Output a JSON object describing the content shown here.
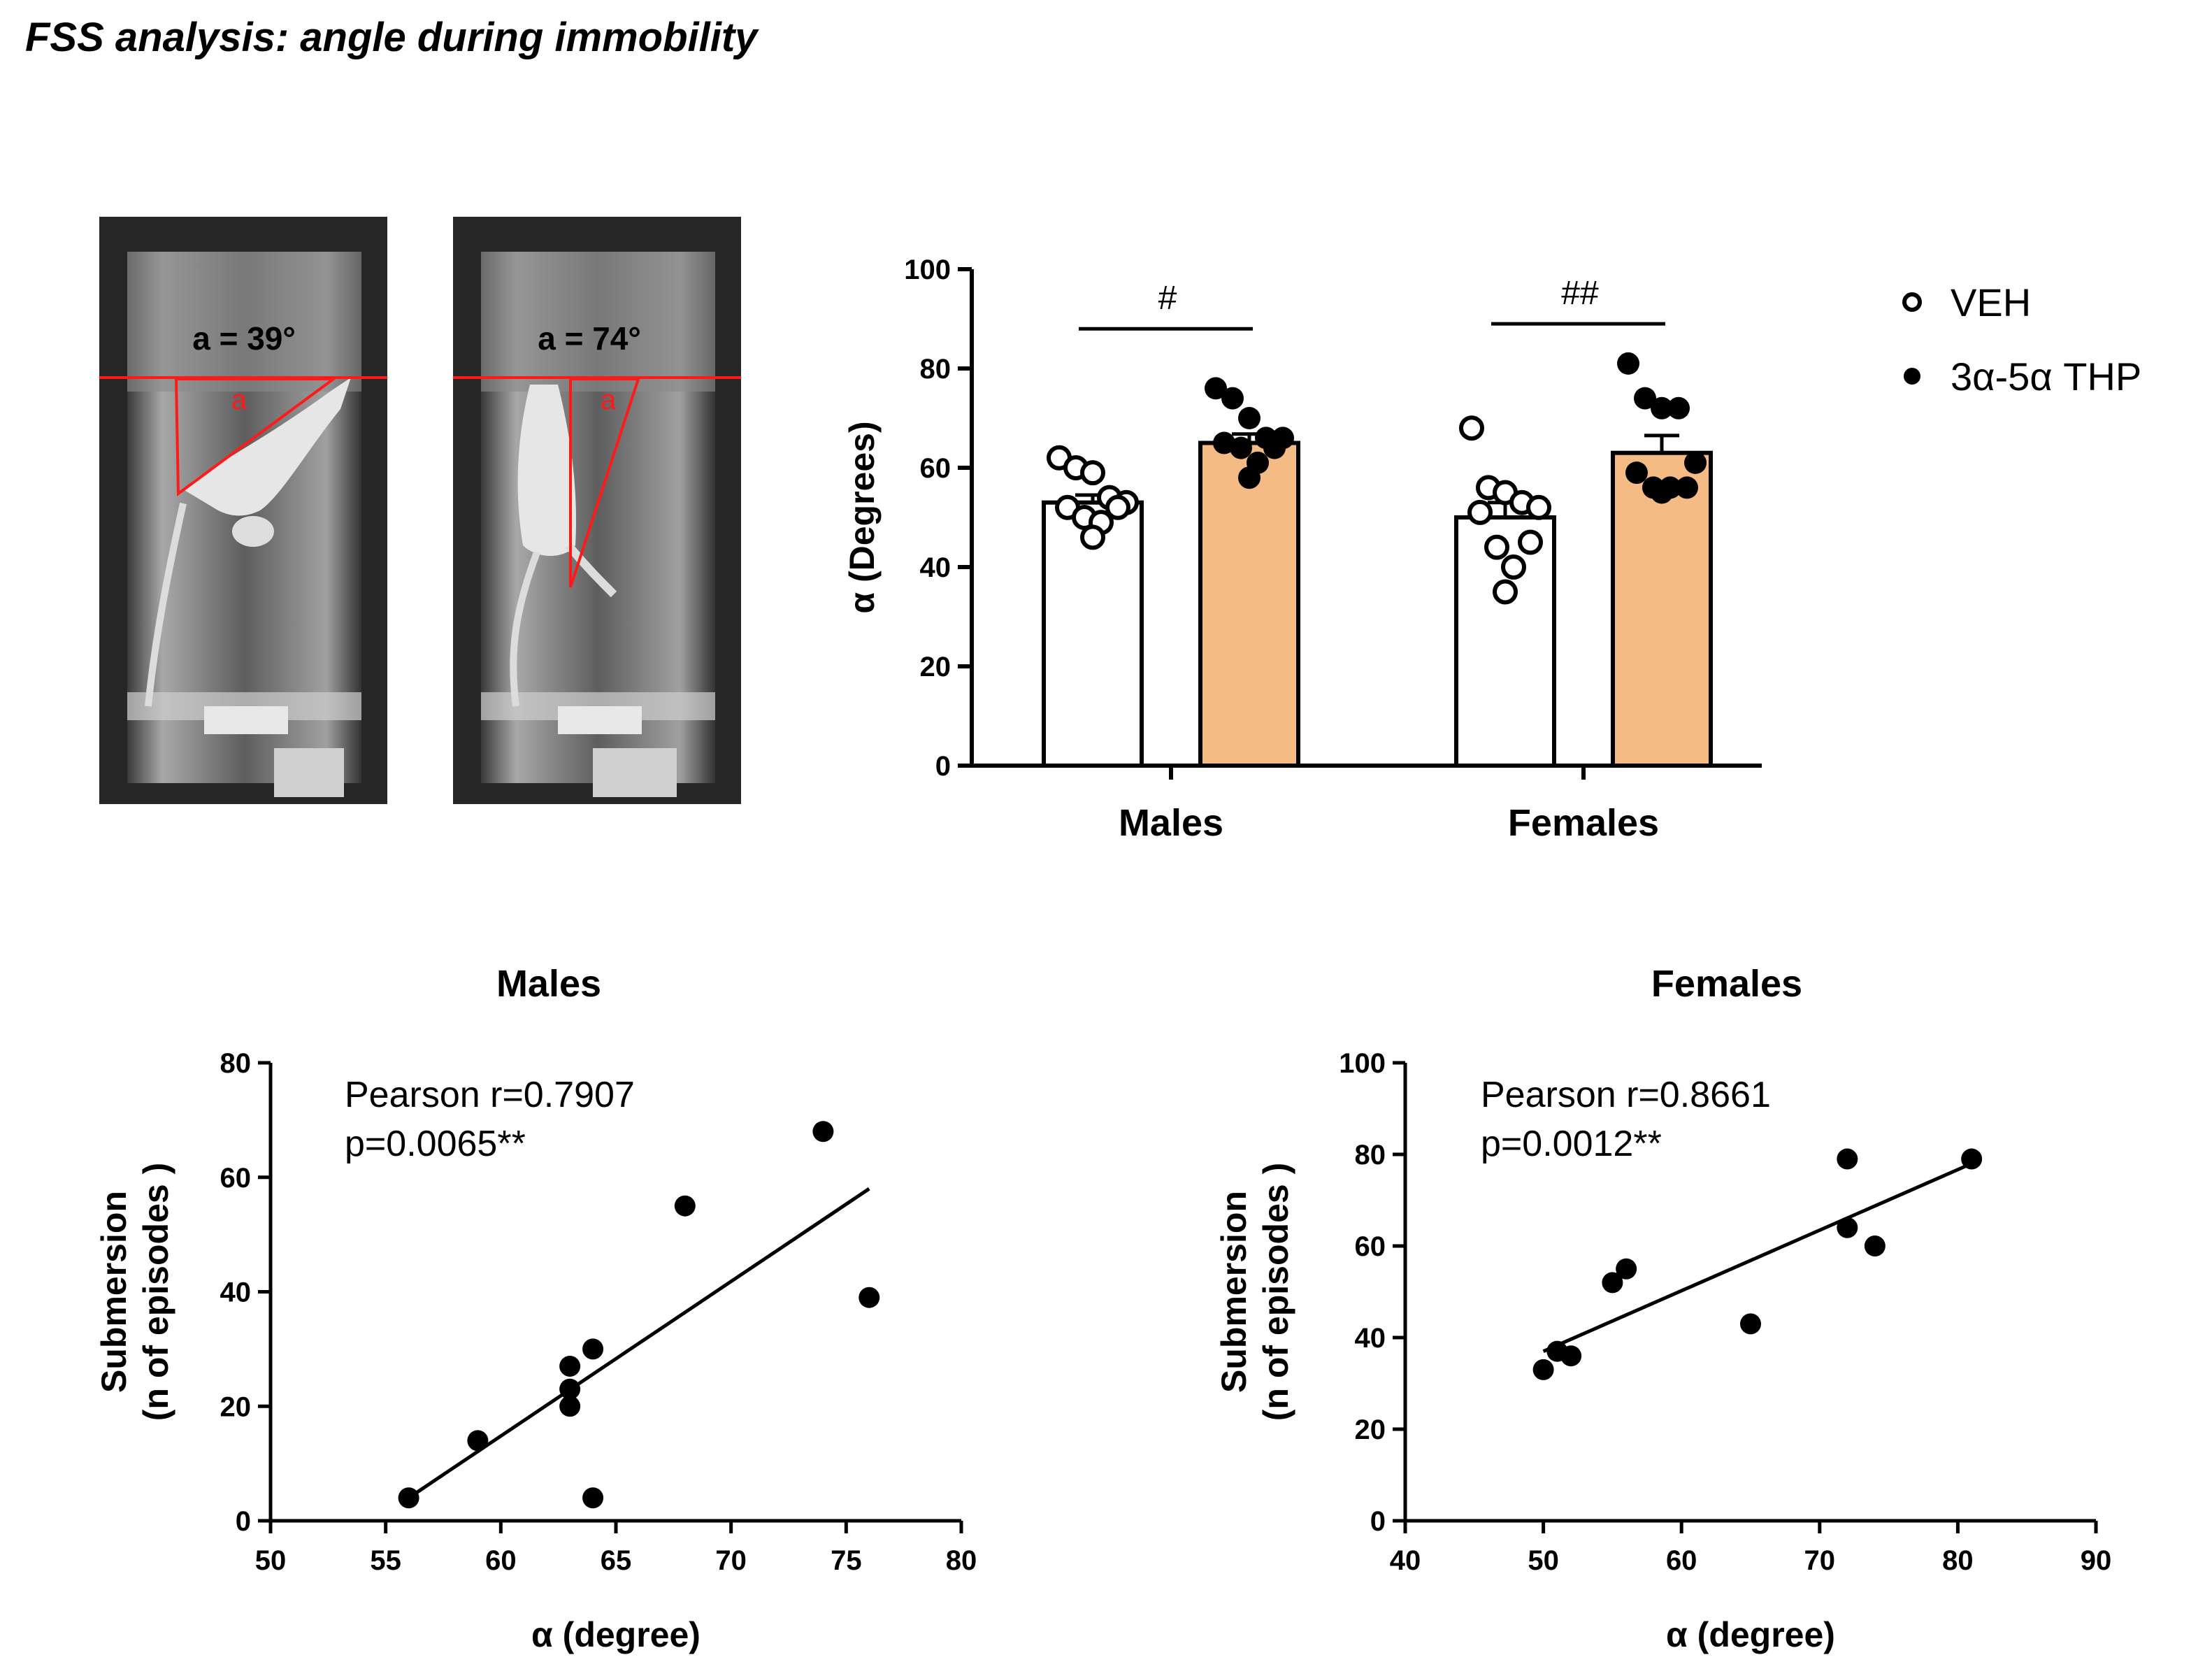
{
  "page": {
    "title": "FSS analysis: angle during immobility"
  },
  "photos": [
    {
      "angle_label": "a = 39°",
      "marker": "a"
    },
    {
      "angle_label": "a = 74°",
      "marker": "a"
    }
  ],
  "chart_data": [
    {
      "type": "bar",
      "title": "",
      "ylabel": "α (Degrees)",
      "xlabel": "",
      "ylim": [
        0,
        100
      ],
      "yticks": [
        0,
        20,
        40,
        60,
        80,
        100
      ],
      "categories": [
        "Males",
        "Females"
      ],
      "legend": {
        "position": "top-right",
        "entries": [
          "VEH",
          "3α-5α THP"
        ]
      },
      "series": [
        {
          "name": "VEH",
          "fill": "#ffffff",
          "marker": "open",
          "values": [
            53,
            50
          ],
          "sem": [
            1.5,
            3
          ],
          "points": [
            [
              62,
              60,
              59,
              54,
              53,
              52,
              52,
              50,
              49,
              46
            ],
            [
              68,
              56,
              55,
              53,
              52,
              51,
              45,
              44,
              40,
              35
            ]
          ]
        },
        {
          "name": "3α-5α THP",
          "fill": "#f4bb84",
          "marker": "filled",
          "values": [
            65,
            63
          ],
          "sem": [
            1.8,
            3.5
          ],
          "points": [
            [
              76,
              74,
              70,
              66,
              66,
              65,
              64,
              64,
              61,
              58
            ],
            [
              81,
              74,
              72,
              72,
              61,
              59,
              56,
              56,
              56,
              55
            ]
          ]
        }
      ],
      "significance": [
        {
          "category": "Males",
          "label": "#",
          "y": 88
        },
        {
          "category": "Females",
          "label": "##",
          "y": 89
        }
      ],
      "colors": {
        "veh": "#ffffff",
        "thp": "#f4bb84",
        "line": "#000000"
      }
    },
    {
      "type": "scatter",
      "title": "Males",
      "xlabel": "α (degree)",
      "ylabel_lines": [
        "Submersion",
        "(n of episodes )"
      ],
      "xlim": [
        50,
        80
      ],
      "ylim": [
        0,
        80
      ],
      "xticks": [
        50,
        55,
        60,
        65,
        70,
        75,
        80
      ],
      "yticks": [
        0,
        20,
        40,
        60,
        80
      ],
      "points": [
        {
          "x": 56,
          "y": 4
        },
        {
          "x": 59,
          "y": 14
        },
        {
          "x": 63,
          "y": 27
        },
        {
          "x": 63,
          "y": 23
        },
        {
          "x": 63,
          "y": 20
        },
        {
          "x": 64,
          "y": 30
        },
        {
          "x": 64,
          "y": 4
        },
        {
          "x": 68,
          "y": 55
        },
        {
          "x": 74,
          "y": 68
        },
        {
          "x": 76,
          "y": 39
        }
      ],
      "fit_line": [
        {
          "x": 56,
          "y": 4
        },
        {
          "x": 76,
          "y": 58
        }
      ],
      "annotation": [
        "Pearson r=0.7907",
        "p=0.0065**"
      ]
    },
    {
      "type": "scatter",
      "title": "Females",
      "xlabel": "α (degree)",
      "ylabel_lines": [
        "Submersion",
        "(n of episodes )"
      ],
      "xlim": [
        40,
        90
      ],
      "ylim": [
        0,
        100
      ],
      "xticks": [
        40,
        50,
        60,
        70,
        80,
        90
      ],
      "yticks": [
        0,
        20,
        40,
        60,
        80,
        100
      ],
      "points": [
        {
          "x": 50,
          "y": 33
        },
        {
          "x": 51,
          "y": 37
        },
        {
          "x": 52,
          "y": 36
        },
        {
          "x": 55,
          "y": 52
        },
        {
          "x": 56,
          "y": 55
        },
        {
          "x": 65,
          "y": 43
        },
        {
          "x": 72,
          "y": 79
        },
        {
          "x": 72,
          "y": 64
        },
        {
          "x": 74,
          "y": 60
        },
        {
          "x": 81,
          "y": 79
        }
      ],
      "fit_line": [
        {
          "x": 50,
          "y": 37
        },
        {
          "x": 81,
          "y": 78
        }
      ],
      "annotation": [
        "Pearson r=0.8661",
        "p=0.0012**"
      ]
    }
  ]
}
